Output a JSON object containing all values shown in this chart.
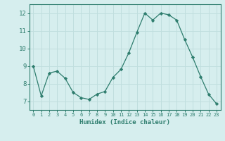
{
  "x": [
    0,
    1,
    2,
    3,
    4,
    5,
    6,
    7,
    8,
    9,
    10,
    11,
    12,
    13,
    14,
    15,
    16,
    17,
    18,
    19,
    20,
    21,
    22,
    23
  ],
  "y": [
    9.0,
    7.3,
    8.6,
    8.7,
    8.3,
    7.5,
    7.2,
    7.1,
    7.4,
    7.55,
    8.35,
    8.8,
    9.75,
    10.9,
    12.0,
    11.6,
    12.0,
    11.9,
    11.6,
    10.5,
    9.5,
    8.4,
    7.4,
    6.85
  ],
  "line_color": "#2e7d6e",
  "marker": "D",
  "marker_size": 2.2,
  "bg_color": "#d6eeee",
  "grid_color": "#c0dede",
  "xlabel": "Humidex (Indice chaleur)",
  "xlim": [
    -0.5,
    23.5
  ],
  "ylim": [
    6.5,
    12.5
  ],
  "yticks": [
    7,
    8,
    9,
    10,
    11,
    12
  ],
  "xticks": [
    0,
    1,
    2,
    3,
    4,
    5,
    6,
    7,
    8,
    9,
    10,
    11,
    12,
    13,
    14,
    15,
    16,
    17,
    18,
    19,
    20,
    21,
    22,
    23
  ],
  "tick_color": "#2e7d6e",
  "label_color": "#2e7d6e",
  "spine_color": "#2e7d6e",
  "xlabel_fontsize": 6.5,
  "xtick_fontsize": 5.0,
  "ytick_fontsize": 6.5
}
